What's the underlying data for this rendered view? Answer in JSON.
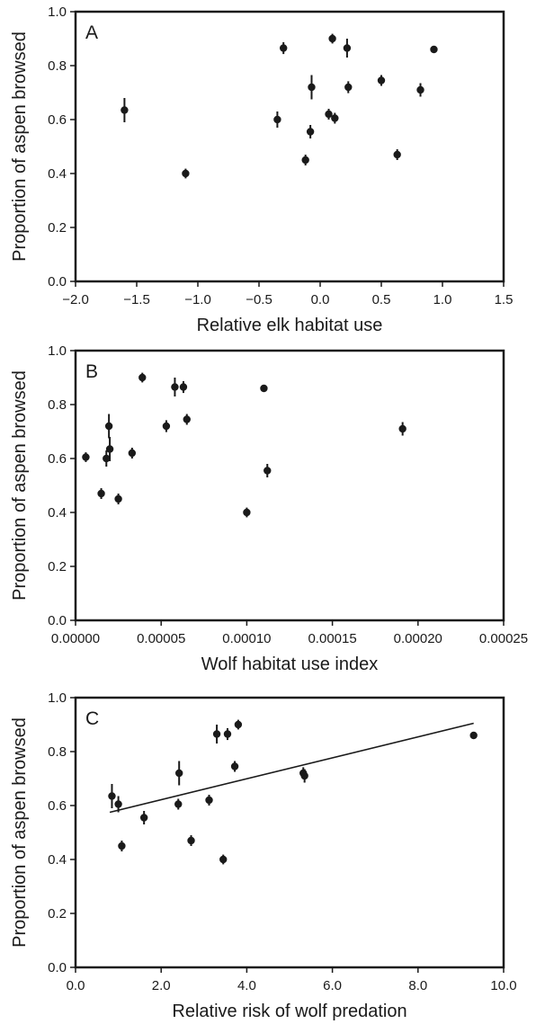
{
  "chart_data": [
    {
      "type": "scatter",
      "panel": "A",
      "xlabel": "Relative elk habitat use",
      "ylabel": "Proportion of aspen browsed",
      "xlim": [
        -2.0,
        1.5
      ],
      "ylim": [
        0.0,
        1.0
      ],
      "xticks": [
        "−2.0",
        "−1.5",
        "−1.0",
        "−0.5",
        "0.0",
        "0.5",
        "1.0",
        "1.5"
      ],
      "xtick_values": [
        -2.0,
        -1.5,
        -1.0,
        -0.5,
        0.0,
        0.5,
        1.0,
        1.5
      ],
      "yticks": [
        "0.0",
        "0.2",
        "0.4",
        "0.6",
        "0.8",
        "1.0"
      ],
      "ytick_values": [
        0.0,
        0.2,
        0.4,
        0.6,
        0.8,
        1.0
      ],
      "grid": false,
      "trendline": null,
      "points": [
        {
          "x": -1.6,
          "y": 0.635,
          "err": 0.045
        },
        {
          "x": -1.1,
          "y": 0.4,
          "err": 0.018
        },
        {
          "x": -0.35,
          "y": 0.6,
          "err": 0.03
        },
        {
          "x": -0.3,
          "y": 0.865,
          "err": 0.022
        },
        {
          "x": -0.12,
          "y": 0.45,
          "err": 0.02
        },
        {
          "x": -0.08,
          "y": 0.555,
          "err": 0.025
        },
        {
          "x": -0.07,
          "y": 0.72,
          "err": 0.045
        },
        {
          "x": 0.07,
          "y": 0.62,
          "err": 0.02
        },
        {
          "x": 0.1,
          "y": 0.9,
          "err": 0.018
        },
        {
          "x": 0.12,
          "y": 0.605,
          "err": 0.02
        },
        {
          "x": 0.22,
          "y": 0.865,
          "err": 0.035
        },
        {
          "x": 0.23,
          "y": 0.72,
          "err": 0.022
        },
        {
          "x": 0.5,
          "y": 0.745,
          "err": 0.02
        },
        {
          "x": 0.63,
          "y": 0.47,
          "err": 0.02
        },
        {
          "x": 0.82,
          "y": 0.71,
          "err": 0.025
        },
        {
          "x": 0.93,
          "y": 0.86,
          "err": 0
        }
      ]
    },
    {
      "type": "scatter",
      "panel": "B",
      "xlabel": "Wolf habitat use index",
      "ylabel": "Proportion of aspen browsed",
      "xlim": [
        0.0,
        0.00025
      ],
      "ylim": [
        0.0,
        1.0
      ],
      "xticks": [
        "0.00000",
        "0.00005",
        "0.00010",
        "0.00015",
        "0.00020",
        "0.00025"
      ],
      "xtick_values": [
        0.0,
        5e-05,
        0.0001,
        0.00015,
        0.0002,
        0.00025
      ],
      "yticks": [
        "0.0",
        "0.2",
        "0.4",
        "0.6",
        "0.8",
        "1.0"
      ],
      "ytick_values": [
        0.0,
        0.2,
        0.4,
        0.6,
        0.8,
        1.0
      ],
      "grid": false,
      "trendline": null,
      "points": [
        {
          "x": 6e-06,
          "y": 0.605,
          "err": 0.018
        },
        {
          "x": 1.5e-05,
          "y": 0.47,
          "err": 0.02
        },
        {
          "x": 1.8e-05,
          "y": 0.6,
          "err": 0.03
        },
        {
          "x": 1.95e-05,
          "y": 0.72,
          "err": 0.045
        },
        {
          "x": 2e-05,
          "y": 0.635,
          "err": 0.045
        },
        {
          "x": 2.5e-05,
          "y": 0.45,
          "err": 0.02
        },
        {
          "x": 3.3e-05,
          "y": 0.62,
          "err": 0.02
        },
        {
          "x": 3.9e-05,
          "y": 0.9,
          "err": 0.018
        },
        {
          "x": 5.3e-05,
          "y": 0.72,
          "err": 0.022
        },
        {
          "x": 5.8e-05,
          "y": 0.865,
          "err": 0.035
        },
        {
          "x": 6.3e-05,
          "y": 0.865,
          "err": 0.022
        },
        {
          "x": 6.5e-05,
          "y": 0.745,
          "err": 0.02
        },
        {
          "x": 0.0001,
          "y": 0.4,
          "err": 0.018
        },
        {
          "x": 0.00011,
          "y": 0.86,
          "err": 0
        },
        {
          "x": 0.000112,
          "y": 0.555,
          "err": 0.025
        },
        {
          "x": 0.000191,
          "y": 0.71,
          "err": 0.025
        }
      ]
    },
    {
      "type": "scatter",
      "panel": "C",
      "xlabel": "Relative risk of wolf predation",
      "ylabel": "Proportion of aspen browsed",
      "xlim": [
        0.0,
        10.0
      ],
      "ylim": [
        0.0,
        1.0
      ],
      "xticks": [
        "0.0",
        "2.0",
        "4.0",
        "6.0",
        "8.0",
        "10.0"
      ],
      "xtick_values": [
        0.0,
        2.0,
        4.0,
        6.0,
        8.0,
        10.0
      ],
      "yticks": [
        "0.0",
        "0.2",
        "0.4",
        "0.6",
        "0.8",
        "1.0"
      ],
      "ytick_values": [
        0.0,
        0.2,
        0.4,
        0.6,
        0.8,
        1.0
      ],
      "grid": false,
      "trendline": {
        "x": [
          0.8,
          9.3
        ],
        "y": [
          0.575,
          0.905
        ]
      },
      "points": [
        {
          "x": 0.85,
          "y": 0.635,
          "err": 0.045
        },
        {
          "x": 1.0,
          "y": 0.605,
          "err": 0.03
        },
        {
          "x": 1.08,
          "y": 0.45,
          "err": 0.02
        },
        {
          "x": 1.6,
          "y": 0.555,
          "err": 0.025
        },
        {
          "x": 2.4,
          "y": 0.605,
          "err": 0.02
        },
        {
          "x": 2.42,
          "y": 0.72,
          "err": 0.045
        },
        {
          "x": 2.7,
          "y": 0.47,
          "err": 0.02
        },
        {
          "x": 3.12,
          "y": 0.62,
          "err": 0.02
        },
        {
          "x": 3.3,
          "y": 0.865,
          "err": 0.035
        },
        {
          "x": 3.45,
          "y": 0.4,
          "err": 0.018
        },
        {
          "x": 3.55,
          "y": 0.865,
          "err": 0.022
        },
        {
          "x": 3.72,
          "y": 0.745,
          "err": 0.02
        },
        {
          "x": 3.8,
          "y": 0.9,
          "err": 0.018
        },
        {
          "x": 5.32,
          "y": 0.72,
          "err": 0.022
        },
        {
          "x": 5.35,
          "y": 0.71,
          "err": 0.025
        },
        {
          "x": 9.3,
          "y": 0.86,
          "err": 0
        }
      ]
    }
  ]
}
